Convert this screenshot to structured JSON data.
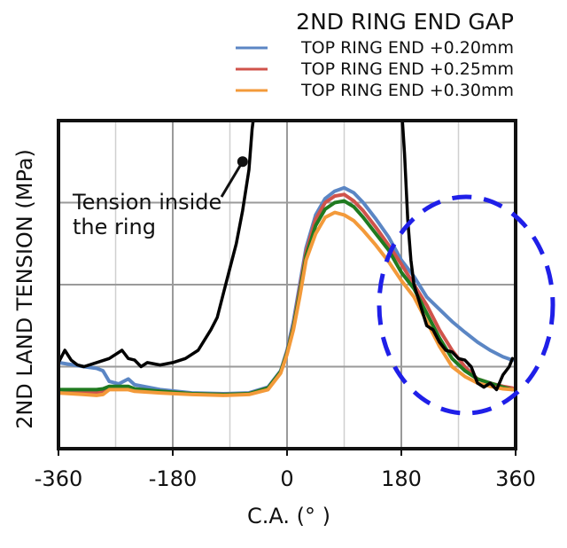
{
  "chart_data": {
    "type": "line",
    "title": "",
    "xlabel": "C.A. (° )",
    "ylabel": "2ND LAND TENSION (MPa)",
    "xlim": [
      -360,
      360
    ],
    "x_ticks": [
      "-360",
      "-180",
      "0",
      "180",
      "360"
    ],
    "x_tick_values": [
      -360,
      -180,
      0,
      180,
      360
    ],
    "y_range_relative": [
      0,
      4
    ],
    "y_gridlines": [
      1,
      2,
      3
    ],
    "grid": true,
    "legend": {
      "title": "2ND RING END GAP",
      "placement": "top-right"
    },
    "series": [
      {
        "name": "TOP RING END +0.20mm",
        "color": "#5b86c4",
        "x": [
          -360,
          -320,
          -300,
          -290,
          -280,
          -265,
          -250,
          -240,
          -200,
          -150,
          -100,
          -60,
          -30,
          -10,
          0,
          10,
          20,
          30,
          45,
          60,
          75,
          90,
          105,
          120,
          140,
          160,
          180,
          200,
          220,
          240,
          260,
          280,
          300,
          320,
          340,
          355
        ],
        "y": [
          1.05,
          1.0,
          0.98,
          0.95,
          0.82,
          0.79,
          0.85,
          0.78,
          0.72,
          0.68,
          0.67,
          0.68,
          0.75,
          0.95,
          1.2,
          1.55,
          2.0,
          2.45,
          2.85,
          3.05,
          3.14,
          3.18,
          3.12,
          3.0,
          2.8,
          2.58,
          2.3,
          2.1,
          1.85,
          1.7,
          1.55,
          1.42,
          1.3,
          1.2,
          1.12,
          1.08
        ]
      },
      {
        "name": "TOP RING END +0.25mm",
        "color": "#d0534b",
        "x": [
          -360,
          -320,
          -300,
          -290,
          -280,
          -265,
          -250,
          -240,
          -200,
          -150,
          -100,
          -60,
          -30,
          -10,
          0,
          10,
          20,
          30,
          45,
          60,
          75,
          90,
          105,
          120,
          140,
          160,
          180,
          200,
          220,
          240,
          260,
          280,
          300,
          320,
          340,
          355
        ],
        "y": [
          0.68,
          0.68,
          0.68,
          0.69,
          0.75,
          0.75,
          0.75,
          0.72,
          0.7,
          0.67,
          0.66,
          0.67,
          0.74,
          0.94,
          1.18,
          1.5,
          1.95,
          2.4,
          2.8,
          3.0,
          3.08,
          3.1,
          3.02,
          2.9,
          2.7,
          2.48,
          2.25,
          2.0,
          1.75,
          1.45,
          1.2,
          1.0,
          0.85,
          0.8,
          0.76,
          0.74
        ]
      },
      {
        "name": "",
        "color": "#1f7a1f",
        "x": [
          -360,
          -320,
          -300,
          -290,
          -280,
          -265,
          -250,
          -240,
          -200,
          -150,
          -100,
          -60,
          -30,
          -10,
          0,
          10,
          20,
          30,
          45,
          60,
          75,
          90,
          105,
          120,
          140,
          160,
          180,
          200,
          220,
          240,
          260,
          280,
          300,
          320,
          340,
          355
        ],
        "y": [
          0.72,
          0.72,
          0.72,
          0.73,
          0.76,
          0.76,
          0.76,
          0.73,
          0.7,
          0.67,
          0.66,
          0.67,
          0.74,
          0.94,
          1.17,
          1.48,
          1.9,
          2.35,
          2.72,
          2.92,
          3.0,
          3.02,
          2.95,
          2.82,
          2.62,
          2.42,
          2.15,
          1.95,
          1.65,
          1.35,
          1.1,
          0.95,
          0.85,
          0.8,
          0.75,
          0.72
        ]
      },
      {
        "name": "TOP RING END +0.30mm",
        "color": "#f39a3a",
        "x": [
          -360,
          -320,
          -300,
          -290,
          -280,
          -265,
          -250,
          -240,
          -200,
          -150,
          -100,
          -60,
          -30,
          -10,
          0,
          10,
          20,
          30,
          45,
          60,
          75,
          90,
          105,
          120,
          140,
          160,
          180,
          200,
          220,
          240,
          260,
          280,
          300,
          320,
          340,
          355
        ],
        "y": [
          0.68,
          0.66,
          0.65,
          0.66,
          0.72,
          0.72,
          0.72,
          0.7,
          0.68,
          0.66,
          0.65,
          0.66,
          0.72,
          0.92,
          1.15,
          1.45,
          1.85,
          2.3,
          2.62,
          2.82,
          2.88,
          2.85,
          2.78,
          2.66,
          2.48,
          2.28,
          2.05,
          1.85,
          1.55,
          1.25,
          1.0,
          0.88,
          0.8,
          0.76,
          0.73,
          0.72
        ]
      },
      {
        "name": "",
        "color": "#000000",
        "x": [
          -360,
          -350,
          -340,
          -330,
          -320,
          -300,
          -280,
          -260,
          -250,
          -240,
          -230,
          -220,
          -200,
          -180,
          -160,
          -140,
          -120,
          -110,
          -100,
          -90,
          -80,
          -70,
          -60,
          -55,
          -50
        ],
        "y": [
          1.05,
          1.2,
          1.08,
          1.02,
          1.0,
          1.05,
          1.1,
          1.2,
          1.1,
          1.08,
          1.0,
          1.05,
          1.02,
          1.05,
          1.1,
          1.2,
          1.45,
          1.6,
          1.9,
          2.2,
          2.5,
          2.9,
          3.4,
          3.9,
          4.2
        ]
      },
      {
        "name": "",
        "color": "#000000",
        "x": [
          180,
          185,
          190,
          195,
          200,
          210,
          220,
          230,
          240,
          250,
          260,
          270,
          280,
          290,
          300,
          310,
          320,
          330,
          340,
          350,
          355
        ],
        "y": [
          4.2,
          3.6,
          2.8,
          2.3,
          2.0,
          1.75,
          1.5,
          1.45,
          1.3,
          1.2,
          1.18,
          1.1,
          1.08,
          1.0,
          0.8,
          0.75,
          0.8,
          0.72,
          0.9,
          1.0,
          1.1
        ]
      }
    ],
    "annotations": [
      {
        "text_lines": [
          "Tension inside",
          "the ring"
        ],
        "points_to": [
          -70,
          3.5
        ]
      },
      {
        "shape": "dashed ellipse",
        "color": "#1f1fe8",
        "region_x": [
          150,
          420
        ],
        "region_y": [
          0.5,
          3.0
        ]
      }
    ]
  }
}
